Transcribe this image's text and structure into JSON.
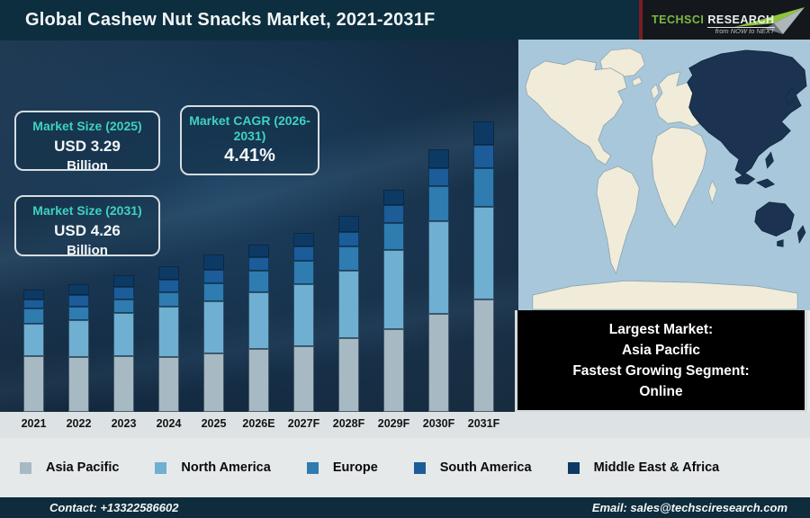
{
  "header": {
    "title": "Global Cashew Nut Snacks Market, 2021-2031F",
    "logo": {
      "brand_primary": "TechSci",
      "brand_secondary": "Research",
      "tagline": "from NOW to NEXT"
    }
  },
  "info_boxes": [
    {
      "label": "Market Size (2025)",
      "value": "USD 3.29",
      "unit": "Billion"
    },
    {
      "label": "Market CAGR (2026-2031)",
      "value": "4.41%",
      "unit": ""
    },
    {
      "label": "Market Size (2031)",
      "value": "USD 4.26",
      "unit": "Billion"
    }
  ],
  "chart_data": {
    "type": "bar",
    "stacked": true,
    "title": "Global Cashew Nut Snacks Market, 2021-2031F",
    "xlabel": "",
    "ylabel": "",
    "y_axis_shown": false,
    "unit": "relative segment heights (px, no y-axis in source)",
    "categories": [
      "2021",
      "2022",
      "2023",
      "2024",
      "2025",
      "2026E",
      "2027F",
      "2028F",
      "2029F",
      "2030F",
      "2031F"
    ],
    "series": [
      {
        "name": "Asia Pacific",
        "color": "#a7bac4",
        "values": [
          62,
          61,
          62,
          61,
          65,
          70,
          73,
          82,
          92,
          109,
          125
        ]
      },
      {
        "name": "North America",
        "color": "#6fafd2",
        "values": [
          36,
          41,
          48,
          56,
          58,
          63,
          69,
          75,
          88,
          103,
          103
        ]
      },
      {
        "name": "Europe",
        "color": "#2e7cb0",
        "values": [
          17,
          15,
          15,
          16,
          20,
          24,
          26,
          27,
          30,
          39,
          43
        ]
      },
      {
        "name": "South America",
        "color": "#1b5c99",
        "values": [
          10,
          13,
          14,
          14,
          15,
          15,
          16,
          16,
          20,
          20,
          26
        ]
      },
      {
        "name": "Middle East & Africa",
        "color": "#0d3a64",
        "values": [
          11,
          12,
          13,
          15,
          17,
          14,
          15,
          18,
          17,
          21,
          26
        ]
      }
    ],
    "annotations": {
      "market_size_2025": "USD 3.29 Billion",
      "market_size_2031": "USD 4.26 Billion",
      "cagr_2026_2031": "4.41%"
    },
    "legend_position": "bottom"
  },
  "legend": [
    {
      "label": "Asia Pacific",
      "color": "#a7bac4"
    },
    {
      "label": "North America",
      "color": "#6fafd2"
    },
    {
      "label": "Europe",
      "color": "#2e7cb0"
    },
    {
      "label": "South America",
      "color": "#1b5c99"
    },
    {
      "label": "Middle East & Africa",
      "color": "#0d3a64"
    }
  ],
  "callout": {
    "lines": [
      "Largest Market:",
      "Asia Pacific",
      "Fastest Growing Segment:",
      "Online"
    ]
  },
  "map": {
    "highlighted_region": "Asia Pacific",
    "ocean_color": "#a9c7da",
    "land_color": "#f0ecd9",
    "highlight_color": "#1b3350"
  },
  "footer": {
    "contact": "Contact: +13322586602",
    "email": "Email: sales@techsciresearch.com"
  },
  "colors": {
    "title_bar": "#0d2e3e",
    "footer_bar": "#0e2c3b",
    "accent_teal": "#3ed2c0"
  }
}
